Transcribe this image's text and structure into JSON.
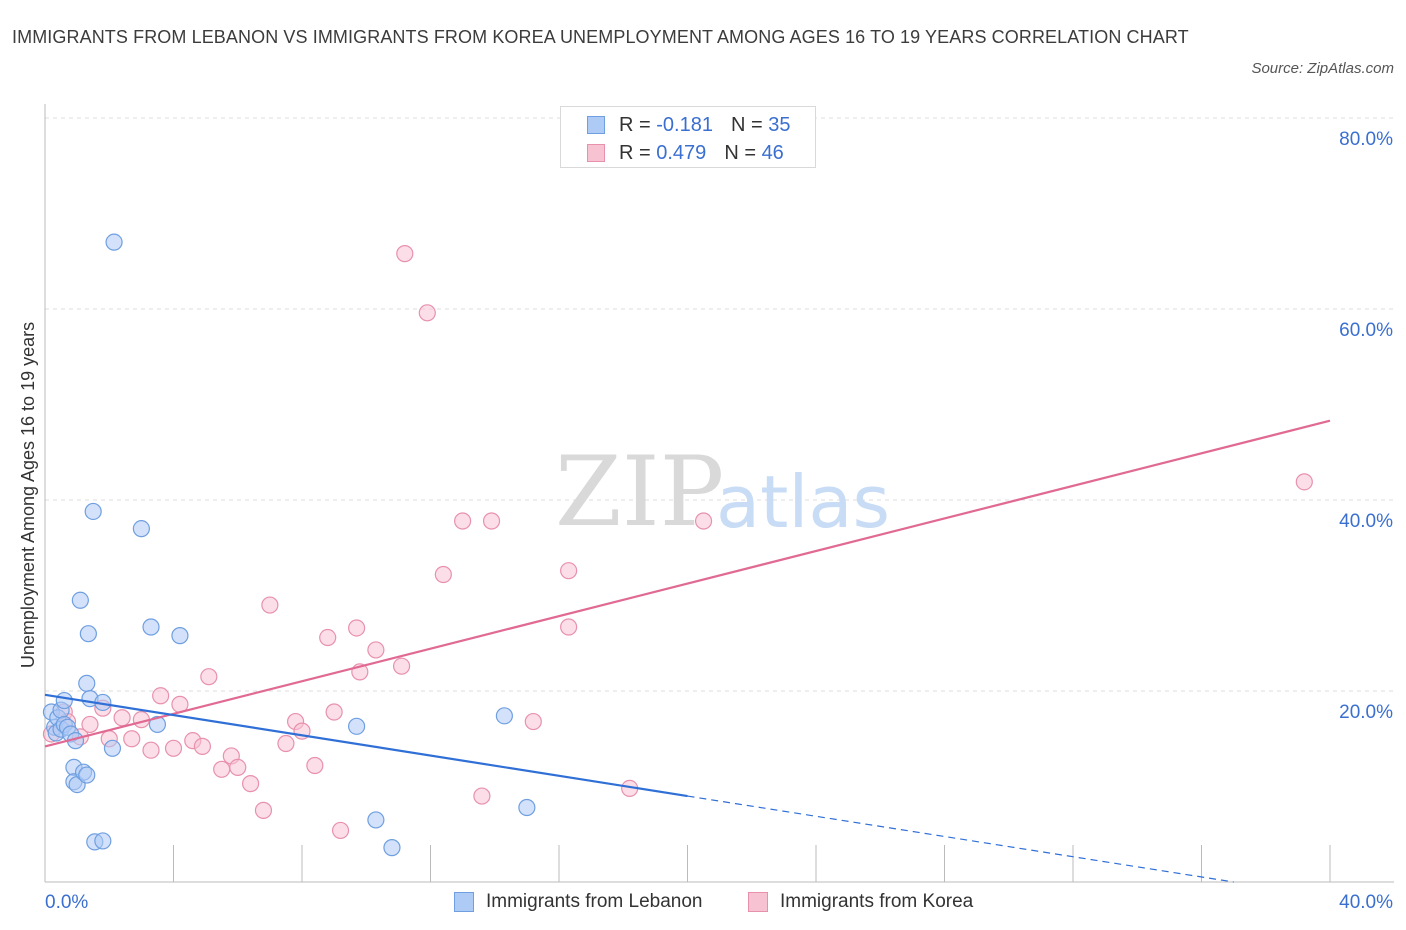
{
  "header": {
    "title": "IMMIGRANTS FROM LEBANON VS IMMIGRANTS FROM KOREA UNEMPLOYMENT AMONG AGES 16 TO 19 YEARS CORRELATION CHART",
    "source": "Source: ZipAtlas.com"
  },
  "watermark": {
    "zip": "ZIP",
    "atlas": "atlas"
  },
  "legend": {
    "rows": [
      {
        "r_label": "R = ",
        "r_value": "-0.181",
        "n_label": "N = ",
        "n_value": "35"
      },
      {
        "r_label": "R = ",
        "r_value": "0.479",
        "n_label": "N = ",
        "n_value": "46"
      }
    ]
  },
  "bottom_legend": {
    "lebanon": "Immigrants from Lebanon",
    "korea": "Immigrants from Korea"
  },
  "colors": {
    "lebanon_fill": "#aecbf5",
    "lebanon_stroke": "#6f9fe0",
    "lebanon_line": "#2f6fd6",
    "korea_fill": "#f7c3d3",
    "korea_stroke": "#e891ad",
    "korea_line": "#e06a93",
    "grid": "#dddddd",
    "axis_text": "#3a6fd0"
  },
  "chart_data": {
    "type": "scatter",
    "title": "IMMIGRANTS FROM LEBANON VS IMMIGRANTS FROM KOREA UNEMPLOYMENT AMONG AGES 16 TO 19 YEARS CORRELATION CHART",
    "xlabel": "",
    "ylabel": "Unemployment Among Ages 16 to 19 years",
    "xlim": [
      0,
      40
    ],
    "ylim": [
      0,
      80
    ],
    "x_tick_labels": [
      "0.0%",
      "40.0%"
    ],
    "y_ticks": [
      20,
      40,
      60,
      80
    ],
    "y_tick_labels": [
      "20.0%",
      "40.0%",
      "60.0%",
      "80.0%"
    ],
    "grid": true,
    "series": [
      {
        "name": "Immigrants from Lebanon",
        "R": -0.181,
        "N": 35,
        "trend": {
          "x": [
            0,
            20
          ],
          "y": [
            19.6,
            9.0
          ],
          "dashed_to": [
            37,
            0
          ]
        },
        "points": [
          [
            0.2,
            17.8
          ],
          [
            0.3,
            16.2
          ],
          [
            0.35,
            15.6
          ],
          [
            0.4,
            17.2
          ],
          [
            0.5,
            16.0
          ],
          [
            0.5,
            18.0
          ],
          [
            0.6,
            19.0
          ],
          [
            0.6,
            16.5
          ],
          [
            0.7,
            16.2
          ],
          [
            0.8,
            15.5
          ],
          [
            0.9,
            12.0
          ],
          [
            0.9,
            10.5
          ],
          [
            0.95,
            14.8
          ],
          [
            1.0,
            10.2
          ],
          [
            1.1,
            29.5
          ],
          [
            1.2,
            11.5
          ],
          [
            1.3,
            11.2
          ],
          [
            1.3,
            20.8
          ],
          [
            1.35,
            26.0
          ],
          [
            1.4,
            19.2
          ],
          [
            1.5,
            38.8
          ],
          [
            1.55,
            4.2
          ],
          [
            1.8,
            4.3
          ],
          [
            1.8,
            18.8
          ],
          [
            2.1,
            14.0
          ],
          [
            2.15,
            67.0
          ],
          [
            3.0,
            37.0
          ],
          [
            3.3,
            26.7
          ],
          [
            3.5,
            16.5
          ],
          [
            4.2,
            25.8
          ],
          [
            9.7,
            16.3
          ],
          [
            10.3,
            6.5
          ],
          [
            10.8,
            3.6
          ],
          [
            14.3,
            17.4
          ],
          [
            15.0,
            7.8
          ]
        ]
      },
      {
        "name": "Immigrants from Korea",
        "R": 0.479,
        "N": 46,
        "trend": {
          "x": [
            0,
            40
          ],
          "y": [
            14.2,
            48.3
          ]
        },
        "points": [
          [
            0.2,
            15.5
          ],
          [
            0.6,
            17.8
          ],
          [
            0.7,
            16.8
          ],
          [
            1.1,
            15.2
          ],
          [
            1.4,
            16.5
          ],
          [
            1.8,
            18.2
          ],
          [
            2.0,
            15.0
          ],
          [
            2.4,
            17.2
          ],
          [
            2.7,
            15.0
          ],
          [
            3.0,
            17.0
          ],
          [
            3.3,
            13.8
          ],
          [
            3.6,
            19.5
          ],
          [
            4.0,
            14.0
          ],
          [
            4.2,
            18.6
          ],
          [
            4.6,
            14.8
          ],
          [
            4.9,
            14.2
          ],
          [
            5.1,
            21.5
          ],
          [
            5.5,
            11.8
          ],
          [
            5.8,
            13.2
          ],
          [
            6.0,
            12.0
          ],
          [
            6.4,
            10.3
          ],
          [
            6.8,
            7.5
          ],
          [
            7.0,
            29.0
          ],
          [
            7.5,
            14.5
          ],
          [
            7.8,
            16.8
          ],
          [
            8.0,
            15.8
          ],
          [
            8.4,
            12.2
          ],
          [
            8.8,
            25.6
          ],
          [
            9.0,
            17.8
          ],
          [
            9.2,
            5.4
          ],
          [
            9.7,
            26.6
          ],
          [
            9.8,
            22.0
          ],
          [
            10.3,
            24.3
          ],
          [
            11.1,
            22.6
          ],
          [
            11.2,
            65.8
          ],
          [
            11.9,
            59.6
          ],
          [
            12.4,
            32.2
          ],
          [
            13.0,
            37.8
          ],
          [
            13.6,
            9.0
          ],
          [
            13.9,
            37.8
          ],
          [
            15.2,
            16.8
          ],
          [
            16.3,
            32.6
          ],
          [
            16.3,
            26.7
          ],
          [
            18.2,
            9.8
          ],
          [
            20.5,
            37.8
          ],
          [
            39.2,
            41.9
          ]
        ]
      }
    ]
  }
}
